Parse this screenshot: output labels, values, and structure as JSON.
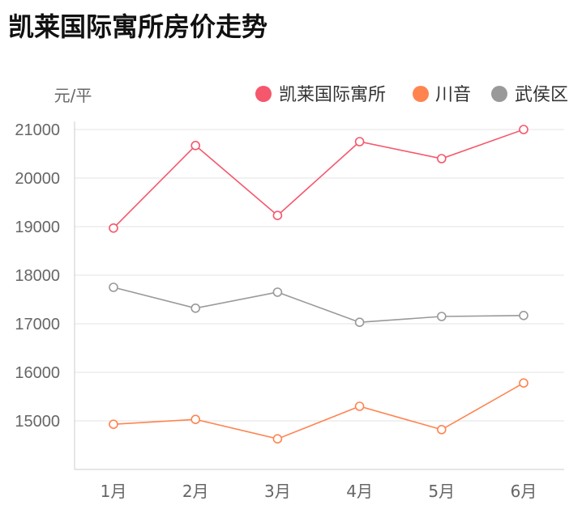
{
  "chart_data": {
    "type": "line",
    "title": "凯莱国际寓所房价走势",
    "ylabel": "元/平",
    "categories": [
      "1月",
      "2月",
      "3月",
      "4月",
      "5月",
      "6月"
    ],
    "ylim": [
      14000,
      21000
    ],
    "yticks": [
      15000,
      16000,
      17000,
      18000,
      19000,
      20000,
      21000
    ],
    "grid": true,
    "legend": "top-right",
    "series": [
      {
        "name": "凯莱国际寓所",
        "color": "#f5576c",
        "values": [
          18970,
          20670,
          19230,
          20750,
          20400,
          21000
        ]
      },
      {
        "name": "川音",
        "color": "#ff8450",
        "values": [
          14930,
          15030,
          14630,
          15300,
          14820,
          15780
        ]
      },
      {
        "name": "武侯区",
        "color": "#999999",
        "values": [
          17750,
          17320,
          17650,
          17030,
          17150,
          17170
        ]
      }
    ]
  }
}
